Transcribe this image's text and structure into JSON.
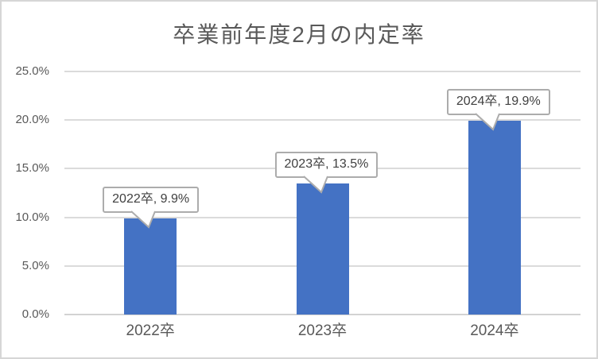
{
  "chart_data": {
    "type": "bar",
    "title": "卒業前年度2月の内定率",
    "categories": [
      "2022卒",
      "2023卒",
      "2024卒"
    ],
    "values": [
      9.9,
      13.5,
      19.9
    ],
    "value_labels": [
      "2022卒, 9.9%",
      "2023卒, 13.5%",
      "2024卒, 19.9%"
    ],
    "y_ticks": [
      "0.0%",
      "5.0%",
      "10.0%",
      "15.0%",
      "20.0%",
      "25.0%"
    ],
    "ylim": [
      0,
      25
    ],
    "y_step": 5,
    "xlabel": "",
    "ylabel": "",
    "grid": true,
    "legend": false,
    "colors": {
      "bar": "#4472C4",
      "gridline": "#DBDBDB",
      "axis_line": "#D2D2D2",
      "axis_label": "#595959",
      "title": "#595959",
      "callout_border": "#ACACAC",
      "callout_text": "#404040",
      "callout_fill": "#FFFFFF"
    }
  }
}
